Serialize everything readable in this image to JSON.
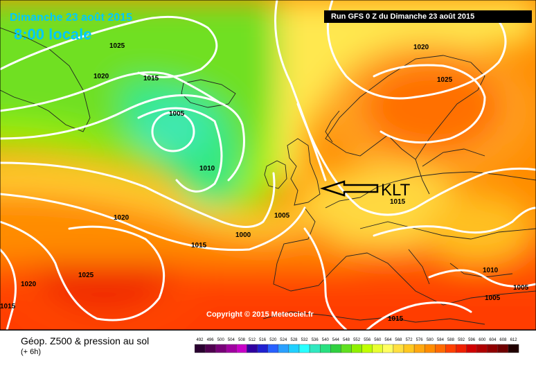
{
  "header": {
    "date": "Dimanche 23 août 2015",
    "time": "8:00 locale",
    "run": "Run GFS 0 Z du Dimanche 23 août 2015"
  },
  "copyright": "Copyright © 2015 Meteociel.fr",
  "annotation": "KLT",
  "isobars": [
    "1025",
    "1020",
    "1015",
    "1005",
    "1010",
    "1000",
    "1005",
    "1015",
    "1020",
    "1020",
    "1025",
    "1015",
    "1025",
    "1020",
    "1015",
    "1010",
    "1005",
    "1005",
    "1015"
  ],
  "footer": {
    "title": "Géop. Z500 & pression au sol",
    "subtitle": "(+ 6h)"
  },
  "scale": {
    "labels": [
      "492",
      "496",
      "500",
      "504",
      "508",
      "512",
      "516",
      "520",
      "524",
      "528",
      "532",
      "536",
      "540",
      "544",
      "548",
      "552",
      "556",
      "560",
      "564",
      "568",
      "572",
      "576",
      "580",
      "584",
      "588",
      "592",
      "596",
      "600",
      "604",
      "608",
      "612"
    ],
    "colors": [
      "#2a0030",
      "#500050",
      "#780078",
      "#a000a0",
      "#c800c8",
      "#3000a0",
      "#2020d0",
      "#2860ff",
      "#2aa0ff",
      "#20d0ff",
      "#28ffff",
      "#30e8c0",
      "#28e080",
      "#30d040",
      "#60e020",
      "#90f000",
      "#c0ff00",
      "#e8ff30",
      "#ffff60",
      "#ffe040",
      "#ffc820",
      "#ffa810",
      "#ff8c00",
      "#ff6a00",
      "#ff4000",
      "#f02000",
      "#d00000",
      "#b00000",
      "#900000",
      "#700000",
      "#200000"
    ]
  }
}
